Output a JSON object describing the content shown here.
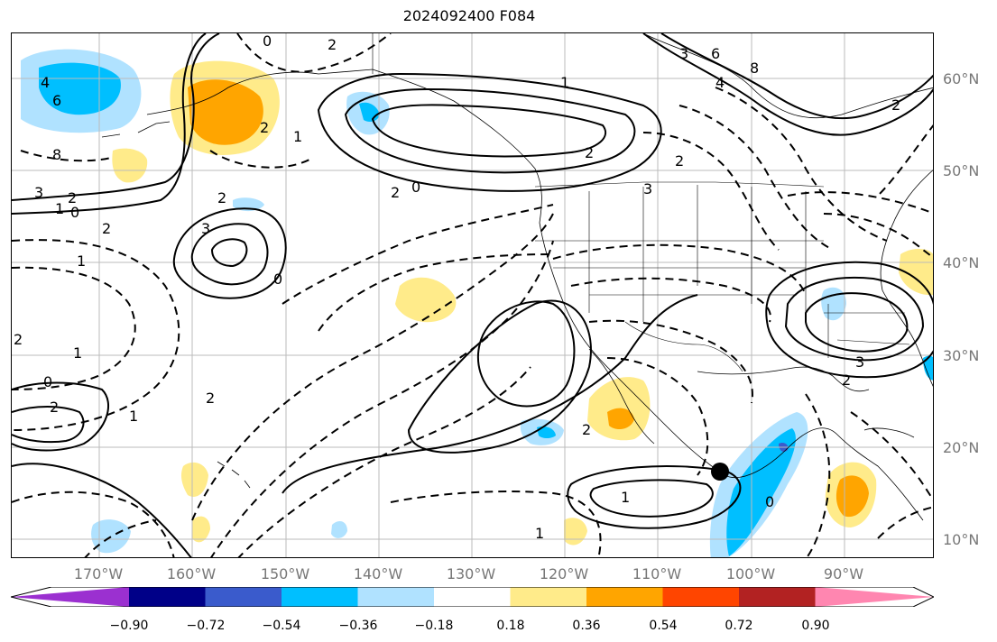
{
  "title": "2024092400 F084",
  "lat_labels": [
    "60°N",
    "50°N",
    "40°N",
    "30°N",
    "20°N",
    "10°N"
  ],
  "lon_labels": [
    "170°W",
    "160°W",
    "150°W",
    "140°W",
    "130°W",
    "120°W",
    "110°W",
    "100°W",
    "90°W"
  ],
  "colorbar": {
    "labels": [
      "−0.90",
      "−0.72",
      "−0.54",
      "−0.36",
      "−0.18",
      "0.18",
      "0.36",
      "0.54",
      "0.72",
      "0.90"
    ],
    "colors": [
      "#9b30d0",
      "#000088",
      "#3a5bcc",
      "#00bfff",
      "#b0e2ff",
      "#ffffff",
      "#ffeb8a",
      "#ffa500",
      "#ff4500",
      "#b22222",
      "#ff86b0"
    ]
  },
  "contour_labels": [
    "4",
    "6",
    "8",
    "3",
    "2",
    "1",
    "0",
    "2",
    "3",
    "2",
    "0",
    "2",
    "1",
    "0",
    "2",
    "1",
    "2",
    "3",
    "4",
    "6",
    "8",
    "2",
    "3",
    "2",
    "1",
    "2",
    "2",
    "1",
    "0",
    "2",
    "0",
    "2",
    "1",
    "3",
    "2",
    "2",
    "1",
    "0",
    "1"
  ]
}
